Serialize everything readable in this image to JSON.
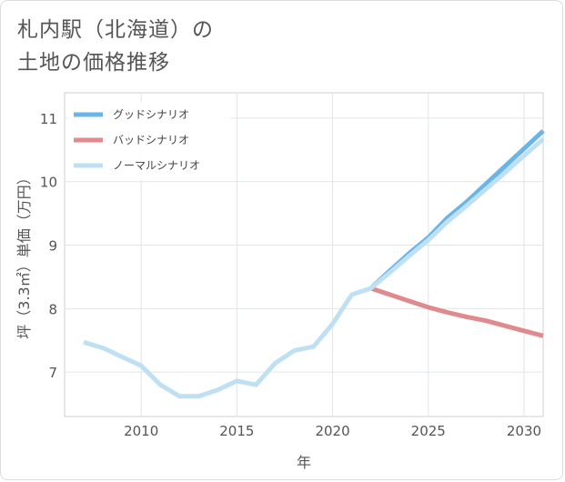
{
  "chart_data": {
    "type": "line",
    "title_lines": [
      "札内駅（北海道）の",
      "土地の価格推移"
    ],
    "xlabel": "年",
    "ylabel": "坪（3.3㎡）単価（万円）",
    "xlim": [
      2006,
      2031
    ],
    "ylim": [
      6.3,
      11.4
    ],
    "x_ticks": [
      2010,
      2015,
      2020,
      2025,
      2030
    ],
    "y_ticks": [
      7,
      8,
      9,
      10,
      11
    ],
    "grid": true,
    "legend_position": "top-left",
    "series": [
      {
        "name": "グッドシナリオ",
        "color": "#6ab4e8",
        "x": [
          2022,
          2023,
          2024,
          2025,
          2026,
          2027,
          2028,
          2029,
          2030,
          2031
        ],
        "y": [
          8.32,
          8.6,
          8.87,
          9.12,
          9.43,
          9.68,
          9.96,
          10.24,
          10.52,
          10.8
        ]
      },
      {
        "name": "バッドシナリオ",
        "color": "#e08a8e",
        "x": [
          2022,
          2023,
          2024,
          2025,
          2026,
          2027,
          2028,
          2029,
          2030,
          2031
        ],
        "y": [
          8.32,
          8.22,
          8.12,
          8.02,
          7.94,
          7.87,
          7.81,
          7.73,
          7.65,
          7.57
        ]
      },
      {
        "name": "ノーマルシナリオ",
        "color": "#bfe0f2",
        "x": [
          2007,
          2008,
          2009,
          2010,
          2011,
          2012,
          2013,
          2014,
          2015,
          2016,
          2017,
          2018,
          2019,
          2020,
          2021,
          2022,
          2023,
          2024,
          2025,
          2026,
          2027,
          2028,
          2029,
          2030,
          2031
        ],
        "y": [
          7.47,
          7.38,
          7.24,
          7.1,
          6.8,
          6.62,
          6.62,
          6.72,
          6.86,
          6.8,
          7.14,
          7.34,
          7.4,
          7.76,
          8.22,
          8.32,
          8.57,
          8.83,
          9.08,
          9.37,
          9.62,
          9.88,
          10.14,
          10.41,
          10.67
        ]
      }
    ]
  }
}
